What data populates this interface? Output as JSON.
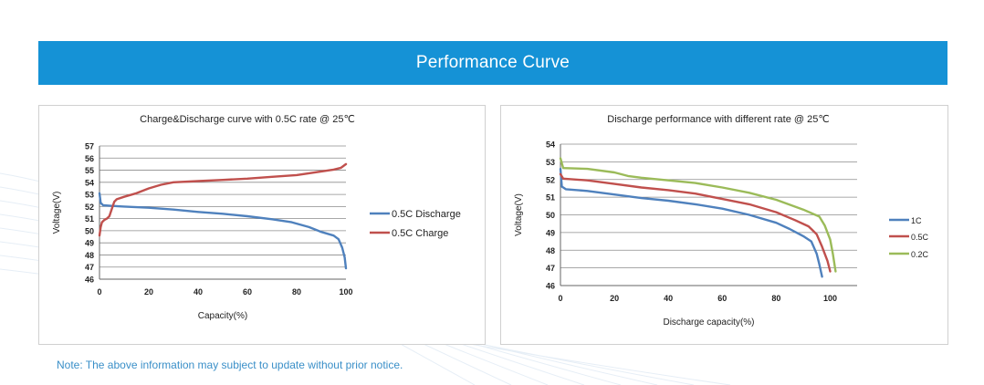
{
  "header": {
    "title": "Performance Curve"
  },
  "note": "Note: The above information may subject to update without prior notice.",
  "colors": {
    "banner": "#1592d6",
    "blue": "#4f81bd",
    "red": "#c0504d",
    "green": "#9bbb59"
  },
  "chart_data": [
    {
      "type": "line",
      "title": "Charge&Discharge curve with 0.5C rate @ 25℃",
      "xlabel": "Capacity(%)",
      "ylabel": "Voltage(V)",
      "xlim": [
        0,
        100
      ],
      "ylim": [
        46,
        57
      ],
      "xticks": [
        0,
        20,
        40,
        60,
        80,
        100
      ],
      "yticks": [
        46,
        47,
        48,
        49,
        50,
        51,
        52,
        53,
        54,
        55,
        56,
        57
      ],
      "legend_position": "right",
      "series": [
        {
          "name": "0.5C Discharge",
          "color": "#4f81bd",
          "points": [
            [
              0,
              53.1
            ],
            [
              0.5,
              52.3
            ],
            [
              1.5,
              52.1
            ],
            [
              5,
              52.05
            ],
            [
              10,
              52.0
            ],
            [
              20,
              51.9
            ],
            [
              30,
              51.75
            ],
            [
              40,
              51.55
            ],
            [
              50,
              51.4
            ],
            [
              60,
              51.2
            ],
            [
              70,
              50.95
            ],
            [
              78,
              50.7
            ],
            [
              85,
              50.3
            ],
            [
              90,
              49.9
            ],
            [
              95,
              49.6
            ],
            [
              97,
              49.3
            ],
            [
              98.5,
              48.6
            ],
            [
              99.5,
              47.8
            ],
            [
              100,
              46.9
            ]
          ]
        },
        {
          "name": "0.5C Charge",
          "color": "#c0504d",
          "points": [
            [
              0,
              49.6
            ],
            [
              0.5,
              50.3
            ],
            [
              1,
              50.7
            ],
            [
              2,
              50.9
            ],
            [
              3,
              51.0
            ],
            [
              4,
              51.2
            ],
            [
              5,
              51.8
            ],
            [
              6,
              52.4
            ],
            [
              7,
              52.6
            ],
            [
              10,
              52.8
            ],
            [
              15,
              53.1
            ],
            [
              20,
              53.5
            ],
            [
              25,
              53.8
            ],
            [
              30,
              54.0
            ],
            [
              40,
              54.1
            ],
            [
              50,
              54.2
            ],
            [
              60,
              54.3
            ],
            [
              70,
              54.45
            ],
            [
              80,
              54.6
            ],
            [
              90,
              54.9
            ],
            [
              95,
              55.05
            ],
            [
              98,
              55.2
            ],
            [
              100,
              55.5
            ]
          ]
        }
      ]
    },
    {
      "type": "line",
      "title": "Discharge performance with different rate @ 25℃",
      "xlabel": "Discharge capacity(%)",
      "ylabel": "Voltage(V)",
      "xlim": [
        0,
        110
      ],
      "ylim": [
        46,
        54
      ],
      "xticks": [
        0,
        20,
        40,
        60,
        80,
        100
      ],
      "yticks": [
        46,
        47,
        48,
        49,
        50,
        51,
        52,
        53,
        54
      ],
      "legend_position": "right",
      "series": [
        {
          "name": "1C",
          "color": "#4f81bd",
          "points": [
            [
              0,
              52.6
            ],
            [
              0.5,
              51.6
            ],
            [
              2,
              51.45
            ],
            [
              10,
              51.35
            ],
            [
              20,
              51.15
            ],
            [
              30,
              50.95
            ],
            [
              40,
              50.8
            ],
            [
              50,
              50.6
            ],
            [
              60,
              50.35
            ],
            [
              70,
              50.0
            ],
            [
              80,
              49.55
            ],
            [
              85,
              49.2
            ],
            [
              90,
              48.8
            ],
            [
              93,
              48.5
            ],
            [
              95,
              47.8
            ],
            [
              96,
              47.2
            ],
            [
              97,
              46.5
            ]
          ]
        },
        {
          "name": "0.5C",
          "color": "#c0504d",
          "points": [
            [
              0,
              52.3
            ],
            [
              1,
              52.05
            ],
            [
              10,
              51.95
            ],
            [
              20,
              51.75
            ],
            [
              30,
              51.55
            ],
            [
              40,
              51.4
            ],
            [
              50,
              51.2
            ],
            [
              60,
              50.9
            ],
            [
              70,
              50.6
            ],
            [
              80,
              50.15
            ],
            [
              87,
              49.7
            ],
            [
              92,
              49.35
            ],
            [
              95,
              48.9
            ],
            [
              97,
              48.2
            ],
            [
              99,
              47.4
            ],
            [
              100,
              46.8
            ]
          ]
        },
        {
          "name": "0.2C",
          "color": "#9bbb59",
          "points": [
            [
              0,
              53.2
            ],
            [
              1,
              52.65
            ],
            [
              10,
              52.6
            ],
            [
              20,
              52.4
            ],
            [
              25,
              52.2
            ],
            [
              30,
              52.1
            ],
            [
              40,
              51.95
            ],
            [
              50,
              51.8
            ],
            [
              60,
              51.55
            ],
            [
              70,
              51.25
            ],
            [
              80,
              50.85
            ],
            [
              90,
              50.3
            ],
            [
              96,
              49.9
            ],
            [
              98,
              49.4
            ],
            [
              100,
              48.6
            ],
            [
              101,
              47.8
            ],
            [
              102,
              46.8
            ]
          ]
        }
      ]
    }
  ]
}
